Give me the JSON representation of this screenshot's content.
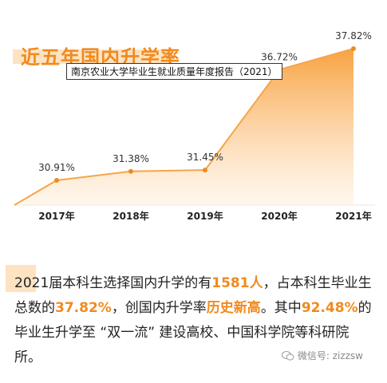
{
  "chart_data": {
    "type": "area",
    "title": "近五年国内升学率",
    "categories": [
      "2017年",
      "2018年",
      "2019年",
      "2020年",
      "2021年"
    ],
    "series": [
      {
        "values": [
          30.91,
          31.38,
          31.45,
          36.72,
          37.82
        ],
        "labels": [
          "30.91%",
          "31.38%",
          "31.45%",
          "36.72%",
          "37.82%"
        ]
      }
    ],
    "xlabel": "",
    "ylabel": "",
    "grid": false,
    "colors": {
      "line": "#f6a54a",
      "fill_top": "#f8a240",
      "fill_bottom": "#fff2e2",
      "accent": "#f08a1e"
    }
  },
  "tooltip": "南京农业大学毕业生就业质量年度报告（2021）",
  "body": {
    "p1": "2021届本科生选择国内升学的有",
    "h1": "1581人",
    "p2": "，占本科生毕业生总数的",
    "h2": "37.82%",
    "p3": "，创国内升学率",
    "h3": "历史新高",
    "p4": "。其中",
    "h4": "92.48%",
    "p5": "的毕业生升学至 “双一流” 建设高校、中国科学院等科研院所。"
  },
  "watermark": "微信号: zizzsw"
}
